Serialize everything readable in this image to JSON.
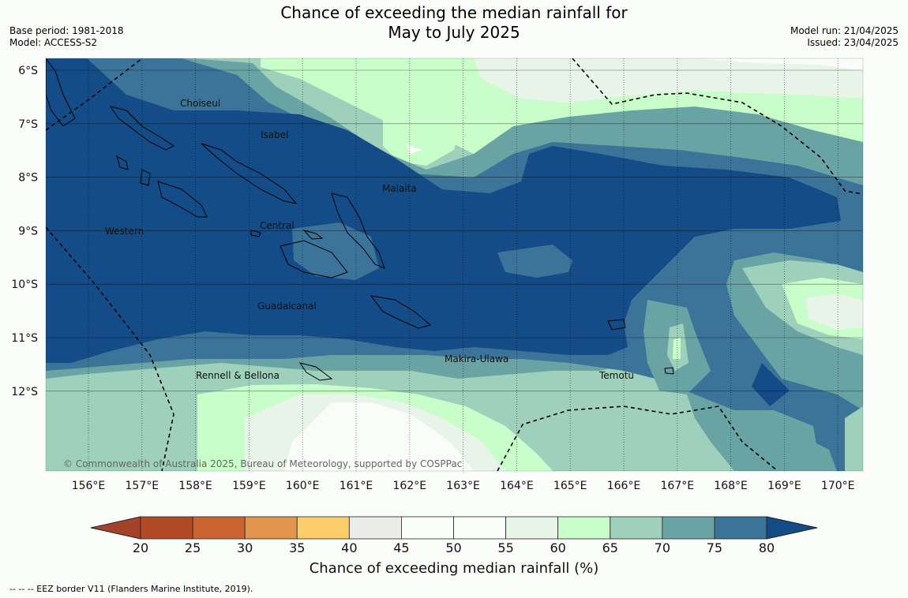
{
  "header": {
    "title_line1": "Chance of exceeding the median rainfall for",
    "title_line2": "May to July 2025",
    "base_period": "Base period: 1981-2018",
    "model": "Model: ACCESS-S2",
    "model_run": "Model run: 21/04/2025",
    "issued": "Issued: 23/04/2025"
  },
  "map": {
    "lat_labels": [
      "6°S",
      "7°S",
      "8°S",
      "9°S",
      "10°S",
      "11°S",
      "12°S"
    ],
    "lon_labels": [
      "156°E",
      "157°E",
      "158°E",
      "159°E",
      "160°E",
      "161°E",
      "162°E",
      "163°E",
      "164°E",
      "165°E",
      "166°E",
      "167°E",
      "168°E",
      "169°E",
      "170°E"
    ],
    "regions": [
      "Choiseul",
      "Isabel",
      "Malaita",
      "Western",
      "Central",
      "Guadalcanal",
      "Makira-Ulawa",
      "Rennell & Bellona",
      "Temotu"
    ],
    "copyright": "© Commonwealth of Australia 2025, Bureau of Meteorology, supported by COSPPac",
    "colors": {
      "c60_65": "#c9fdc9",
      "c65_70": "#9ed0bb",
      "c70_75": "#6aa3a3",
      "c75_80": "#3b7399",
      "c80": "#144c87",
      "c55_60": "#e9f4e9",
      "c50_55": "#fafcfa"
    }
  },
  "colorbar": {
    "ticks": [
      "20",
      "25",
      "30",
      "35",
      "40",
      "45",
      "50",
      "55",
      "60",
      "65",
      "70",
      "75",
      "80"
    ],
    "colors": [
      "#b24a28",
      "#cb6431",
      "#e2954c",
      "#fdcd6a",
      "#ececea",
      "#fbfdfb",
      "#fbfdfb",
      "#e9f4e9",
      "#c9fdc9",
      "#9ed0bb",
      "#6aa3a3",
      "#3b7399"
    ],
    "low_color": "#a5432a",
    "high_color": "#144c87",
    "title": "Chance of exceeding median rainfall (%)"
  },
  "footer": {
    "legend_text": "-- -- -- EEZ border V11 (Flanders Marine Institute, 2019)."
  }
}
